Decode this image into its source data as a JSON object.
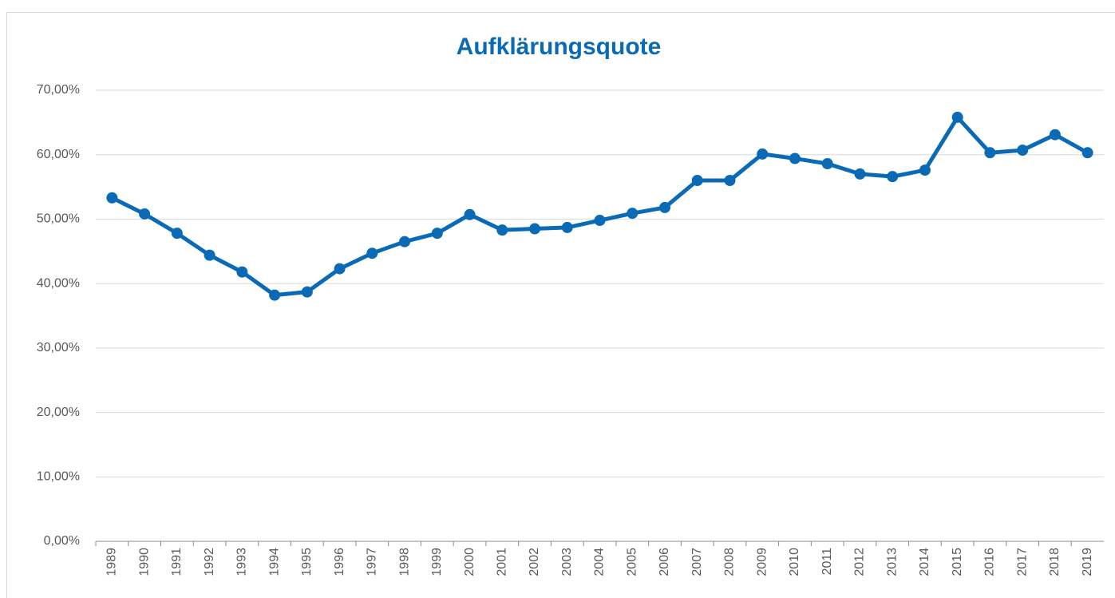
{
  "chart_data": {
    "type": "line",
    "title": "Aufklärungsquote",
    "categories": [
      "1989",
      "1990",
      "1991",
      "1992",
      "1993",
      "1994",
      "1995",
      "1996",
      "1997",
      "1998",
      "1999",
      "2000",
      "2001",
      "2002",
      "2003",
      "2004",
      "2005",
      "2006",
      "2007",
      "2008",
      "2009",
      "2010",
      "2011",
      "2012",
      "2013",
      "2014",
      "2015",
      "2016",
      "2017",
      "2018",
      "2019"
    ],
    "series": [
      {
        "name": "Aufklärungsquote",
        "color": "#0a6ab6",
        "values": [
          53.3,
          50.8,
          47.8,
          44.4,
          41.8,
          38.2,
          38.7,
          42.3,
          44.7,
          46.5,
          47.8,
          50.7,
          48.3,
          48.5,
          48.7,
          49.8,
          50.9,
          51.8,
          56.0,
          56.0,
          60.1,
          59.4,
          58.6,
          57.0,
          56.6,
          57.6,
          65.8,
          60.3,
          60.7,
          63.1,
          60.3
        ]
      }
    ],
    "ylim": [
      0,
      70
    ],
    "yticks": [
      {
        "value": 0,
        "label": "0,00%"
      },
      {
        "value": 10,
        "label": "10,00%"
      },
      {
        "value": 20,
        "label": "20,00%"
      },
      {
        "value": 30,
        "label": "30,00%"
      },
      {
        "value": 40,
        "label": "40,00%"
      },
      {
        "value": 50,
        "label": "50,00%"
      },
      {
        "value": 60,
        "label": "60,00%"
      },
      {
        "value": 70,
        "label": "70,00%"
      }
    ],
    "grid": true
  }
}
